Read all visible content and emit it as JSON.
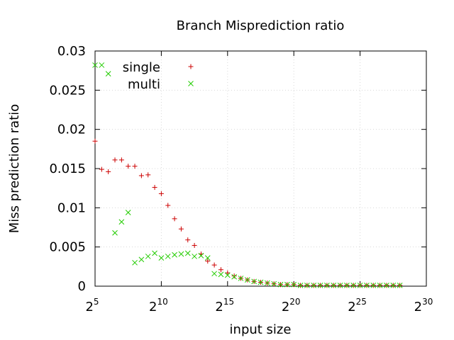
{
  "chart_data": {
    "type": "scatter",
    "title": "Branch Misprediction ratio",
    "xlabel": "input size",
    "ylabel": "Miss prediction ratio",
    "x_scale": "log2",
    "xlim": [
      5,
      30
    ],
    "ylim": [
      0,
      0.03
    ],
    "grid": true,
    "legend_position": "top-left",
    "x_ticks": [
      {
        "base": "2",
        "exp": "5"
      },
      {
        "base": "2",
        "exp": "10"
      },
      {
        "base": "2",
        "exp": "15"
      },
      {
        "base": "2",
        "exp": "20"
      },
      {
        "base": "2",
        "exp": "25"
      },
      {
        "base": "2",
        "exp": "30"
      }
    ],
    "y_ticks": [
      "0",
      "0.005",
      "0.01",
      "0.015",
      "0.02",
      "0.025",
      "0.03"
    ],
    "series": [
      {
        "name": "single",
        "marker": "plus",
        "color": "#cc0000",
        "x": [
          5,
          5.5,
          6,
          6.5,
          7,
          7.5,
          8,
          8.5,
          9,
          9.5,
          10,
          10.5,
          11,
          11.5,
          12,
          12.5,
          13,
          13.5,
          14,
          14.5,
          15,
          15.5,
          16,
          16.5,
          17,
          17.5,
          18,
          18.5,
          19,
          19.5,
          20,
          20.5,
          21,
          21.5,
          22,
          22.5,
          23,
          23.5,
          24,
          24.5,
          25,
          25.5,
          26,
          26.5,
          27,
          27.5,
          28
        ],
        "y": [
          0.0185,
          0.0149,
          0.0146,
          0.0161,
          0.0161,
          0.0153,
          0.0153,
          0.0141,
          0.0142,
          0.0126,
          0.0118,
          0.0103,
          0.0086,
          0.0073,
          0.0059,
          0.0052,
          0.0041,
          0.0032,
          0.0027,
          0.0021,
          0.0017,
          0.0013,
          0.001,
          0.0008,
          0.0006,
          0.0005,
          0.0004,
          0.0003,
          0.0002,
          0.0002,
          0.0002,
          0.0001,
          0.0001,
          0.0001,
          0.0001,
          0.0001,
          0.0001,
          0.0001,
          0.0001,
          0.0001,
          0.0001,
          0.0001,
          0.0001,
          0.0001,
          0.0001,
          0.0001,
          0.0001
        ]
      },
      {
        "name": "multi",
        "marker": "cross",
        "color": "#22cc00",
        "x": [
          5,
          5.5,
          6,
          6.5,
          7,
          7.5,
          8,
          8.5,
          9,
          9.5,
          10,
          10.5,
          11,
          11.5,
          12,
          12.5,
          13,
          13.5,
          14,
          14.5,
          15,
          15.5,
          16,
          16.5,
          17,
          17.5,
          18,
          18.5,
          19,
          19.5,
          20,
          20.5,
          21,
          21.5,
          22,
          22.5,
          23,
          23.5,
          24,
          24.5,
          25,
          25.5,
          26,
          26.5,
          27,
          27.5,
          28
        ],
        "y": [
          0.0282,
          0.0282,
          0.0271,
          0.0068,
          0.0082,
          0.0094,
          0.003,
          0.0034,
          0.0038,
          0.0042,
          0.0036,
          0.0038,
          0.004,
          0.0041,
          0.0042,
          0.0038,
          0.0039,
          0.0036,
          0.0016,
          0.0015,
          0.0014,
          0.0012,
          0.001,
          0.0008,
          0.0006,
          0.0005,
          0.0004,
          0.0003,
          0.0002,
          0.0002,
          0.0002,
          0.0001,
          0.0001,
          0.0001,
          0.0001,
          0.0001,
          0.0001,
          0.0001,
          0.0001,
          0.0001,
          0.0001,
          0.0001,
          0.0001,
          0.0001,
          0.0001,
          0.0001,
          0.0001
        ]
      }
    ]
  }
}
